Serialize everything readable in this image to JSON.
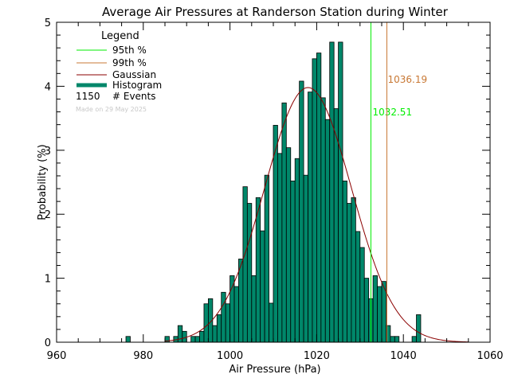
{
  "chart_data": {
    "type": "bar",
    "title": "Average Air Pressures at Randerson Station during Winter",
    "xlabel": "Air Pressure (hPa)",
    "ylabel": "Probability (%)",
    "xlim": [
      960,
      1060
    ],
    "ylim": [
      0,
      5
    ],
    "xticks": [
      "960",
      "980",
      "1000",
      "1020",
      "1040",
      "1060"
    ],
    "yticks": [
      "0",
      "1",
      "2",
      "3",
      "4",
      "5"
    ],
    "bin_width": 1,
    "histogram": {
      "name": "Histogram",
      "color": "#00876a",
      "bin_starts": [
        976,
        985,
        987,
        988,
        989,
        990,
        991,
        992,
        993,
        994,
        995,
        996,
        997,
        998,
        999,
        1000,
        1001,
        1002,
        1003,
        1004,
        1005,
        1006,
        1007,
        1008,
        1009,
        1010,
        1011,
        1012,
        1013,
        1014,
        1015,
        1016,
        1017,
        1018,
        1019,
        1020,
        1021,
        1022,
        1023,
        1024,
        1025,
        1026,
        1027,
        1028,
        1029,
        1030,
        1031,
        1032,
        1033,
        1034,
        1035,
        1036,
        1037,
        1038,
        1039,
        1040,
        1041,
        1042,
        1043,
        1044
      ],
      "values": [
        0.09,
        0.09,
        0.09,
        0.26,
        0.17,
        0.0,
        0.09,
        0.09,
        0.17,
        0.6,
        0.68,
        0.26,
        0.43,
        0.78,
        0.6,
        1.04,
        0.87,
        1.3,
        2.43,
        2.17,
        1.04,
        2.26,
        1.74,
        2.61,
        0.61,
        3.39,
        2.95,
        3.74,
        3.04,
        2.52,
        2.87,
        4.08,
        2.61,
        3.91,
        4.43,
        4.52,
        3.82,
        3.48,
        4.69,
        3.65,
        4.69,
        2.52,
        2.17,
        2.26,
        1.73,
        1.48,
        1.0,
        0.68,
        1.04,
        0.87,
        0.95,
        0.26,
        0.09,
        0.09,
        0.0,
        0.0,
        0.0,
        0.09,
        0.43,
        0.0
      ]
    },
    "gaussian": {
      "name": "Gaussian",
      "color": "#8b0000",
      "mean": 1018.0,
      "sigma": 10.0,
      "peak": 3.98,
      "range": [
        985,
        1055
      ]
    },
    "percentiles": [
      {
        "name": "95th %",
        "value": 1032.51,
        "label": "1032.51",
        "color": "#00ee00"
      },
      {
        "name": "99th %",
        "value": 1036.19,
        "label": "1036.19",
        "color": "#c87834"
      }
    ],
    "legend": {
      "title": "Legend",
      "placement": "top-left",
      "entries": [
        {
          "label": "95th %",
          "color": "#00ee00"
        },
        {
          "label": "99th %",
          "color": "#c87834"
        },
        {
          "label": "Gaussian",
          "color": "#8b0000"
        },
        {
          "label": "Histogram",
          "color": "#00876a"
        }
      ],
      "events_count": "1150",
      "events_label": "# Events",
      "made_on": "Made on 29 May 2025"
    }
  }
}
